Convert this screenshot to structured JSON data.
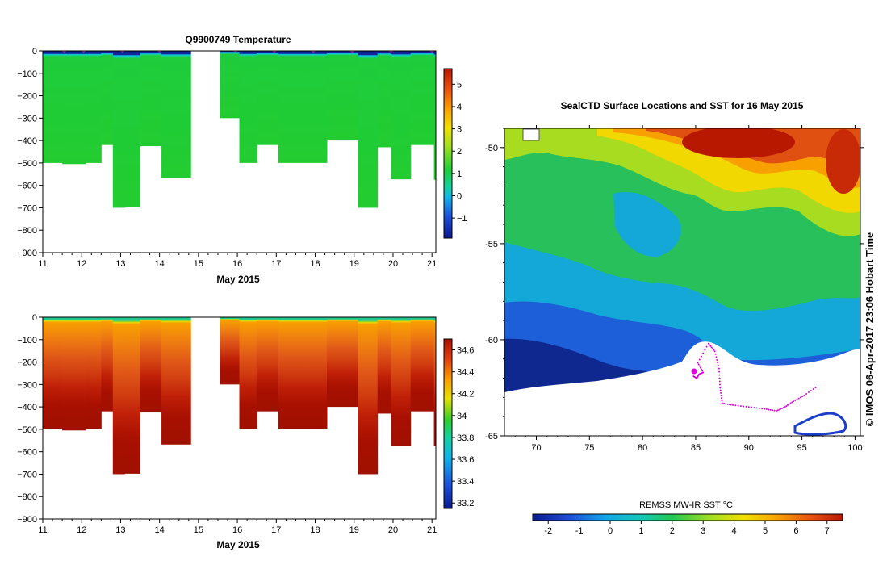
{
  "colors": {
    "background": "#ffffff",
    "axis": "#000000",
    "sample_marker": "#cc33cc",
    "seal_track": "#e000e0"
  },
  "chart_data": [
    {
      "type": "heatmap",
      "id": "temperature",
      "title": "Q9900749  Temperature",
      "xlabel": "May 2015",
      "x_ticks": [
        "11",
        "12",
        "13",
        "14",
        "15",
        "16",
        "17",
        "18",
        "19",
        "20",
        "21"
      ],
      "xlim": [
        11,
        21.1
      ],
      "y_ticks": [
        "0",
        "−100",
        "−200",
        "−300",
        "−400",
        "−500",
        "−600",
        "−700",
        "−800",
        "−900"
      ],
      "ylim": [
        -900,
        0
      ],
      "colorbar": {
        "min": -1.9,
        "max": 5.7,
        "ticks": [
          "5",
          "4",
          "3",
          "2",
          "1",
          "0",
          "−1"
        ],
        "tick_values": [
          5,
          4,
          3,
          2,
          1,
          0,
          -1
        ]
      },
      "profiles": [
        {
          "x0": 11.0,
          "x1": 11.5,
          "depth": 500,
          "surface": -1.6,
          "mid": 1.9
        },
        {
          "x0": 11.5,
          "x1": 12.1,
          "depth": 505,
          "surface": -1.7,
          "mid": 1.9
        },
        {
          "x0": 12.1,
          "x1": 12.5,
          "depth": 500,
          "surface": -1.6,
          "mid": 1.8
        },
        {
          "x0": 12.5,
          "x1": 12.8,
          "depth": 420,
          "surface": -1.7,
          "mid": 1.9
        },
        {
          "x0": 12.8,
          "x1": 13.1,
          "depth": 700,
          "surface": -1.6,
          "mid": 1.9
        },
        {
          "x0": 13.1,
          "x1": 13.5,
          "depth": 698,
          "surface": -1.6,
          "mid": 1.9
        },
        {
          "x0": 13.5,
          "x1": 14.05,
          "depth": 425,
          "surface": -1.7,
          "mid": 1.9
        },
        {
          "x0": 14.05,
          "x1": 14.8,
          "depth": 568,
          "surface": -1.6,
          "mid": 1.9
        },
        {
          "x0": 15.55,
          "x1": 16.05,
          "depth": 300,
          "surface": -1.7,
          "mid": 1.9
        },
        {
          "x0": 16.05,
          "x1": 16.5,
          "depth": 500,
          "surface": -1.6,
          "mid": 1.9
        },
        {
          "x0": 16.5,
          "x1": 17.05,
          "depth": 420,
          "surface": -1.7,
          "mid": 1.9
        },
        {
          "x0": 17.05,
          "x1": 18.0,
          "depth": 500,
          "surface": -1.6,
          "mid": 1.9
        },
        {
          "x0": 18.0,
          "x1": 18.3,
          "depth": 500,
          "surface": -1.7,
          "mid": 1.9
        },
        {
          "x0": 18.3,
          "x1": 19.1,
          "depth": 400,
          "surface": -1.6,
          "mid": 1.9
        },
        {
          "x0": 19.1,
          "x1": 19.6,
          "depth": 700,
          "surface": -1.6,
          "mid": 1.9
        },
        {
          "x0": 19.6,
          "x1": 19.95,
          "depth": 430,
          "surface": -1.7,
          "mid": 1.9
        },
        {
          "x0": 19.95,
          "x1": 20.45,
          "depth": 573,
          "surface": -1.6,
          "mid": 1.9
        },
        {
          "x0": 20.45,
          "x1": 21.05,
          "depth": 420,
          "surface": -1.6,
          "mid": 1.9
        },
        {
          "x0": 21.05,
          "x1": 21.1,
          "depth": 575,
          "surface": -1.6,
          "mid": 1.9
        }
      ],
      "markers_x": [
        11.55,
        12.05,
        13.05,
        14.0,
        15.95,
        16.95,
        17.95,
        18.95,
        19.95,
        21.0
      ]
    },
    {
      "type": "heatmap",
      "id": "salinity",
      "title": "",
      "xlabel": "May 2015",
      "x_ticks": [
        "11",
        "12",
        "13",
        "14",
        "15",
        "16",
        "17",
        "18",
        "19",
        "20",
        "21"
      ],
      "xlim": [
        11,
        21.1
      ],
      "y_ticks": [
        "0",
        "−100",
        "−200",
        "−300",
        "−400",
        "−500",
        "−600",
        "−700",
        "−800",
        "−900"
      ],
      "ylim": [
        -900,
        0
      ],
      "colorbar": {
        "min": 33.15,
        "max": 34.7,
        "ticks": [
          "34.6",
          "34.4",
          "34.2",
          "34",
          "33.8",
          "33.6",
          "33.4",
          "33.2"
        ],
        "tick_values": [
          34.6,
          34.4,
          34.2,
          34.0,
          33.8,
          33.6,
          33.4,
          33.2
        ]
      },
      "surface_salinity": 33.85,
      "bottom_salinity": 34.7
    },
    {
      "type": "heatmap",
      "id": "sst_map",
      "title": "SealCTD Surface Locations and SST for 16 May 2015",
      "xlabel": "",
      "x_ticks": [
        "70",
        "75",
        "80",
        "85",
        "90",
        "95",
        "100"
      ],
      "x_tick_values": [
        70,
        75,
        80,
        85,
        90,
        95,
        100
      ],
      "xlim": [
        67,
        100.5
      ],
      "y_ticks": [
        "-50",
        "-55",
        "-60",
        "-65"
      ],
      "y_tick_values": [
        -50,
        -55,
        -60,
        -65
      ],
      "ylim": [
        -65,
        -49
      ],
      "colorbar": {
        "label": "REMSS MW-IR SST °C",
        "min": -2.5,
        "max": 7.5,
        "ticks": [
          "-2",
          "-1",
          "0",
          "1",
          "2",
          "3",
          "4",
          "5",
          "6",
          "7"
        ],
        "tick_values": [
          -2,
          -1,
          0,
          1,
          2,
          3,
          4,
          5,
          6,
          7
        ]
      },
      "seal_track": [
        [
          84.8,
          -61.9
        ],
        [
          85.1,
          -62.0
        ],
        [
          85.3,
          -61.8
        ],
        [
          85.7,
          -61.7
        ],
        [
          85.2,
          -61.2
        ],
        [
          86.2,
          -60.2
        ],
        [
          86.8,
          -60.6
        ],
        [
          87.2,
          -61.5
        ],
        [
          87.3,
          -62.5
        ],
        [
          87.5,
          -63.3
        ],
        [
          88.5,
          -63.4
        ],
        [
          90.0,
          -63.5
        ],
        [
          91.5,
          -63.6
        ],
        [
          92.6,
          -63.7
        ],
        [
          93.4,
          -63.5
        ],
        [
          94.2,
          -63.2
        ],
        [
          95.2,
          -62.9
        ],
        [
          96.5,
          -62.4
        ]
      ]
    }
  ],
  "copyright": "© IMOS 06-Apr-2017 23:06 Hobart Time"
}
